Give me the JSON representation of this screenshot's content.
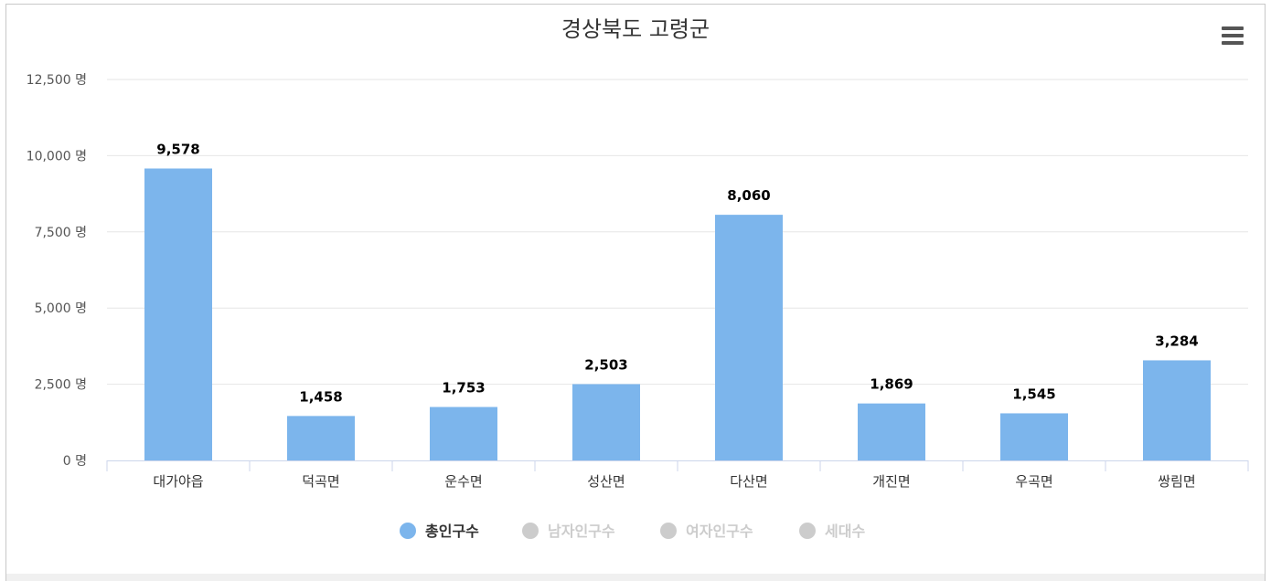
{
  "chart_data": {
    "type": "bar",
    "title": "경상북도 고령군",
    "categories": [
      "대가야읍",
      "덕곡면",
      "운수면",
      "성산면",
      "다산면",
      "개진면",
      "우곡면",
      "쌍림면"
    ],
    "values": [
      9578,
      1458,
      1753,
      2503,
      8060,
      1869,
      1545,
      3284
    ],
    "value_labels": [
      "9,578",
      "1,458",
      "1,753",
      "2,503",
      "8,060",
      "1,869",
      "1,545",
      "3,284"
    ],
    "ylim": [
      0,
      12500
    ],
    "yticks": [
      0,
      2500,
      5000,
      7500,
      10000,
      12500
    ],
    "ytick_labels": [
      "0 명",
      "2,500 명",
      "5,000 명",
      "7,500 명",
      "10,000 명",
      "12,500 명"
    ],
    "grid": true,
    "legend_position": "bottom",
    "series": [
      {
        "name": "총인구수",
        "color": "#7cb5ec",
        "visible": true
      },
      {
        "name": "남자인구수",
        "color": "#cccccc",
        "visible": false
      },
      {
        "name": "여자인구수",
        "color": "#cccccc",
        "visible": false
      },
      {
        "name": "세대수",
        "color": "#cccccc",
        "visible": false
      }
    ]
  },
  "colors": {
    "bar": "#7cb5ec",
    "grid": "#e6e6e6",
    "axis": "#ccd6eb",
    "text": "#333333",
    "legend_inactive_text": "#cccccc"
  },
  "menu_icon": "hamburger-menu-icon"
}
